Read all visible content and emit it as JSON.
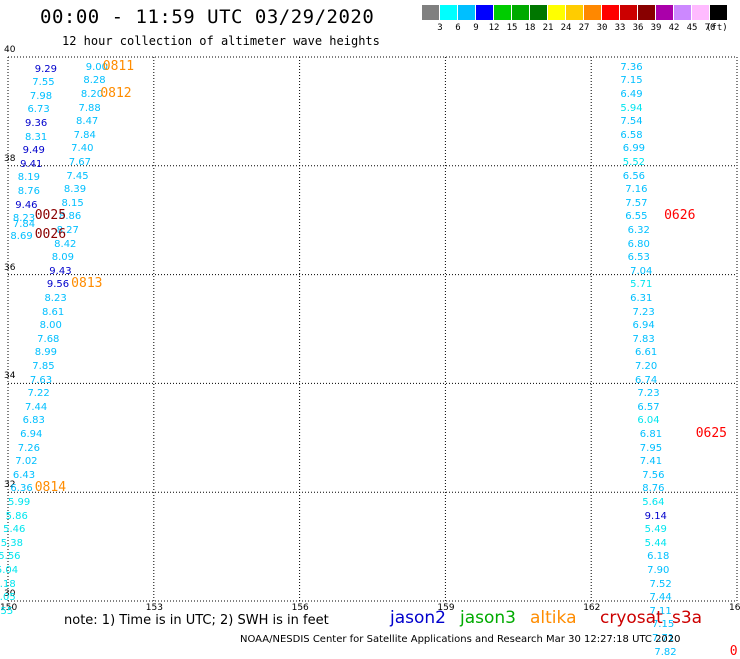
{
  "title": "00:00 - 11:59 UTC 03/29/2020",
  "subtitle": "12 hour collection of altimeter wave heights",
  "legend": {
    "colors": [
      "#808080",
      "#00ffff",
      "#00bfff",
      "#0000ff",
      "#00cc00",
      "#00aa00",
      "#007700",
      "#ffff00",
      "#ffcc00",
      "#ff8800",
      "#ff0000",
      "#cc0000",
      "#880000",
      "#aa00aa",
      "#cc88ff",
      "#ffbbff",
      "#000000"
    ],
    "labels": [
      "3",
      "6",
      "9",
      "12",
      "15",
      "18",
      "21",
      "24",
      "27",
      "30",
      "33",
      "36",
      "39",
      "42",
      "45",
      "70",
      "(ft)"
    ]
  },
  "axes": {
    "lon_min": 150,
    "lon_max": 165,
    "lat_min": 30,
    "lat_max": 40,
    "x_ticks": [
      "150",
      "153",
      "156",
      "159",
      "162",
      "165"
    ],
    "y_ticks": [
      "30",
      "32",
      "34",
      "36",
      "38",
      "40"
    ]
  },
  "colors": {
    "c1": "#00bfff",
    "c2": "#00e5ee",
    "c3": "#0000cc",
    "t1": "#ff8c00",
    "t2": "#8b0000",
    "t3": "#ff0000"
  },
  "points": [
    [
      "9.29",
      150.55,
      39.77,
      "c3"
    ],
    [
      "7.55",
      150.5,
      39.52,
      "c1"
    ],
    [
      "7.98",
      150.45,
      39.27,
      "c1"
    ],
    [
      "6.73",
      150.4,
      39.02,
      "c1"
    ],
    [
      "9.36",
      150.35,
      38.77,
      "c3"
    ],
    [
      "8.31",
      150.35,
      38.52,
      "c1"
    ],
    [
      "9.49",
      150.3,
      38.27,
      "c3"
    ],
    [
      "9.41",
      150.25,
      38.02,
      "c3"
    ],
    [
      "8.19",
      150.2,
      37.77,
      "c1"
    ],
    [
      "8.76",
      150.2,
      37.52,
      "c1"
    ],
    [
      "9.46",
      150.15,
      37.27,
      "c3"
    ],
    [
      "8.23",
      150.1,
      37.02,
      "c1"
    ],
    [
      "7.84",
      150.1,
      36.92,
      "c1"
    ],
    [
      "8.69",
      150.05,
      36.7,
      "c1"
    ],
    [
      "9.00",
      151.6,
      39.8,
      "c1"
    ],
    [
      "8.28",
      151.55,
      39.55,
      "c1"
    ],
    [
      "8.20",
      151.5,
      39.3,
      "c1"
    ],
    [
      "7.88",
      151.45,
      39.05,
      "c1"
    ],
    [
      "8.47",
      151.4,
      38.8,
      "c1"
    ],
    [
      "7.84",
      151.35,
      38.55,
      "c1"
    ],
    [
      "7.40",
      151.3,
      38.3,
      "c1"
    ],
    [
      "7.67",
      151.25,
      38.05,
      "c1"
    ],
    [
      "7.45",
      151.2,
      37.8,
      "c1"
    ],
    [
      "8.39",
      151.15,
      37.55,
      "c1"
    ],
    [
      "8.15",
      151.1,
      37.3,
      "c1"
    ],
    [
      "8.86",
      151.05,
      37.05,
      "c1"
    ],
    [
      "8.27",
      151.0,
      36.8,
      "c1"
    ],
    [
      "8.42",
      150.95,
      36.55,
      "c1"
    ],
    [
      "8.09",
      150.9,
      36.3,
      "c1"
    ],
    [
      "9.43",
      150.85,
      36.05,
      "c3"
    ],
    [
      "9.56",
      150.8,
      35.8,
      "c3"
    ],
    [
      "8.23",
      150.75,
      35.55,
      "c1"
    ],
    [
      "8.61",
      150.7,
      35.3,
      "c1"
    ],
    [
      "8.00",
      150.65,
      35.05,
      "c1"
    ],
    [
      "7.68",
      150.6,
      34.8,
      "c1"
    ],
    [
      "8.99",
      150.55,
      34.55,
      "c1"
    ],
    [
      "7.85",
      150.5,
      34.3,
      "c1"
    ],
    [
      "7.63",
      150.45,
      34.05,
      "c1"
    ],
    [
      "7.22",
      150.4,
      33.8,
      "c1"
    ],
    [
      "7.44",
      150.35,
      33.55,
      "c1"
    ],
    [
      "6.83",
      150.3,
      33.3,
      "c1"
    ],
    [
      "6.94",
      150.25,
      33.05,
      "c1"
    ],
    [
      "7.26",
      150.2,
      32.8,
      "c1"
    ],
    [
      "7.02",
      150.15,
      32.55,
      "c1"
    ],
    [
      "6.43",
      150.1,
      32.3,
      "c1"
    ],
    [
      "6.36",
      150.05,
      32.05,
      "c1"
    ],
    [
      "5.99",
      150.0,
      31.8,
      "c2"
    ],
    [
      "5.86",
      149.95,
      31.55,
      "c2"
    ],
    [
      "5.46",
      149.9,
      31.3,
      "c2"
    ],
    [
      "5.38",
      149.85,
      31.05,
      "c2"
    ],
    [
      "5.56",
      149.8,
      30.8,
      "c2"
    ],
    [
      "5.04",
      149.75,
      30.55,
      "c2"
    ],
    [
      "5.18",
      149.7,
      30.3,
      "c2"
    ],
    [
      "5.05",
      149.7,
      30.05,
      "c2"
    ],
    [
      "4.55",
      149.65,
      29.8,
      "c2"
    ],
    [
      "7.36",
      162.6,
      39.8,
      "c1"
    ],
    [
      "7.15",
      162.6,
      39.55,
      "c1"
    ],
    [
      "6.49",
      162.6,
      39.3,
      "c1"
    ],
    [
      "5.94",
      162.6,
      39.05,
      "c2"
    ],
    [
      "7.54",
      162.6,
      38.8,
      "c1"
    ],
    [
      "6.58",
      162.6,
      38.55,
      "c1"
    ],
    [
      "6.99",
      162.65,
      38.3,
      "c1"
    ],
    [
      "5.52",
      162.65,
      38.05,
      "c2"
    ],
    [
      "6.56",
      162.65,
      37.8,
      "c1"
    ],
    [
      "7.16",
      162.7,
      37.55,
      "c1"
    ],
    [
      "7.57",
      162.7,
      37.3,
      "c1"
    ],
    [
      "6.55",
      162.7,
      37.05,
      "c1"
    ],
    [
      "6.32",
      162.75,
      36.8,
      "c1"
    ],
    [
      "6.80",
      162.75,
      36.55,
      "c1"
    ],
    [
      "6.53",
      162.75,
      36.3,
      "c1"
    ],
    [
      "7.04",
      162.8,
      36.05,
      "c1"
    ],
    [
      "5.71",
      162.8,
      35.8,
      "c2"
    ],
    [
      "6.31",
      162.8,
      35.55,
      "c1"
    ],
    [
      "7.23",
      162.85,
      35.3,
      "c1"
    ],
    [
      "6.94",
      162.85,
      35.05,
      "c1"
    ],
    [
      "7.83",
      162.85,
      34.8,
      "c1"
    ],
    [
      "6.61",
      162.9,
      34.55,
      "c1"
    ],
    [
      "7.20",
      162.9,
      34.3,
      "c1"
    ],
    [
      "6.74",
      162.9,
      34.05,
      "c1"
    ],
    [
      "7.23",
      162.95,
      33.8,
      "c1"
    ],
    [
      "6.57",
      162.95,
      33.55,
      "c1"
    ],
    [
      "6.04",
      162.95,
      33.3,
      "c2"
    ],
    [
      "6.81",
      163.0,
      33.05,
      "c1"
    ],
    [
      "7.95",
      163.0,
      32.8,
      "c1"
    ],
    [
      "7.41",
      163.0,
      32.55,
      "c1"
    ],
    [
      "7.56",
      163.05,
      32.3,
      "c1"
    ],
    [
      "8.76",
      163.05,
      32.05,
      "c1"
    ],
    [
      "5.64",
      163.05,
      31.8,
      "c2"
    ],
    [
      "9.14",
      163.1,
      31.55,
      "c3"
    ],
    [
      "5.49",
      163.1,
      31.3,
      "c2"
    ],
    [
      "5.44",
      163.1,
      31.05,
      "c2"
    ],
    [
      "6.18",
      163.15,
      30.8,
      "c1"
    ],
    [
      "7.90",
      163.15,
      30.55,
      "c1"
    ],
    [
      "7.52",
      163.2,
      30.3,
      "c1"
    ],
    [
      "7.44",
      163.2,
      30.05,
      "c1"
    ],
    [
      "7.11",
      163.2,
      29.8,
      "c1"
    ],
    [
      "7.15",
      163.25,
      29.55,
      "c1"
    ],
    [
      "7.71",
      163.25,
      29.3,
      "c1"
    ],
    [
      "7.82",
      163.3,
      29.05,
      "c1"
    ]
  ],
  "time_marks": [
    [
      "0811",
      151.95,
      39.82,
      "t1"
    ],
    [
      "0812",
      151.9,
      39.32,
      "t1"
    ],
    [
      "0025",
      150.55,
      37.07,
      "t2"
    ],
    [
      "0026",
      150.55,
      36.72,
      "t2"
    ],
    [
      "0813",
      151.3,
      35.82,
      "t1"
    ],
    [
      "0814",
      150.55,
      32.07,
      "t1"
    ],
    [
      "0626",
      163.5,
      37.07,
      "t3"
    ],
    [
      "0625",
      164.15,
      33.07,
      "t3"
    ],
    [
      "0",
      164.85,
      29.07,
      "t3"
    ]
  ],
  "note": "note: 1) Time is in UTC; 2) SWH is in feet",
  "satellites": [
    {
      "name": "jason2",
      "color": "#0000cc"
    },
    {
      "name": "jason3",
      "color": "#00aa00"
    },
    {
      "name": "altika",
      "color": "#ff8c00"
    },
    {
      "name": "cryosat",
      "color": "#cc0000"
    },
    {
      "name": "s3a",
      "color": "#cc0000"
    }
  ],
  "credit": "NOAA/NESDIS Center for Satellite Applications and Research    Mar 30 12:27:18 UTC 2020"
}
